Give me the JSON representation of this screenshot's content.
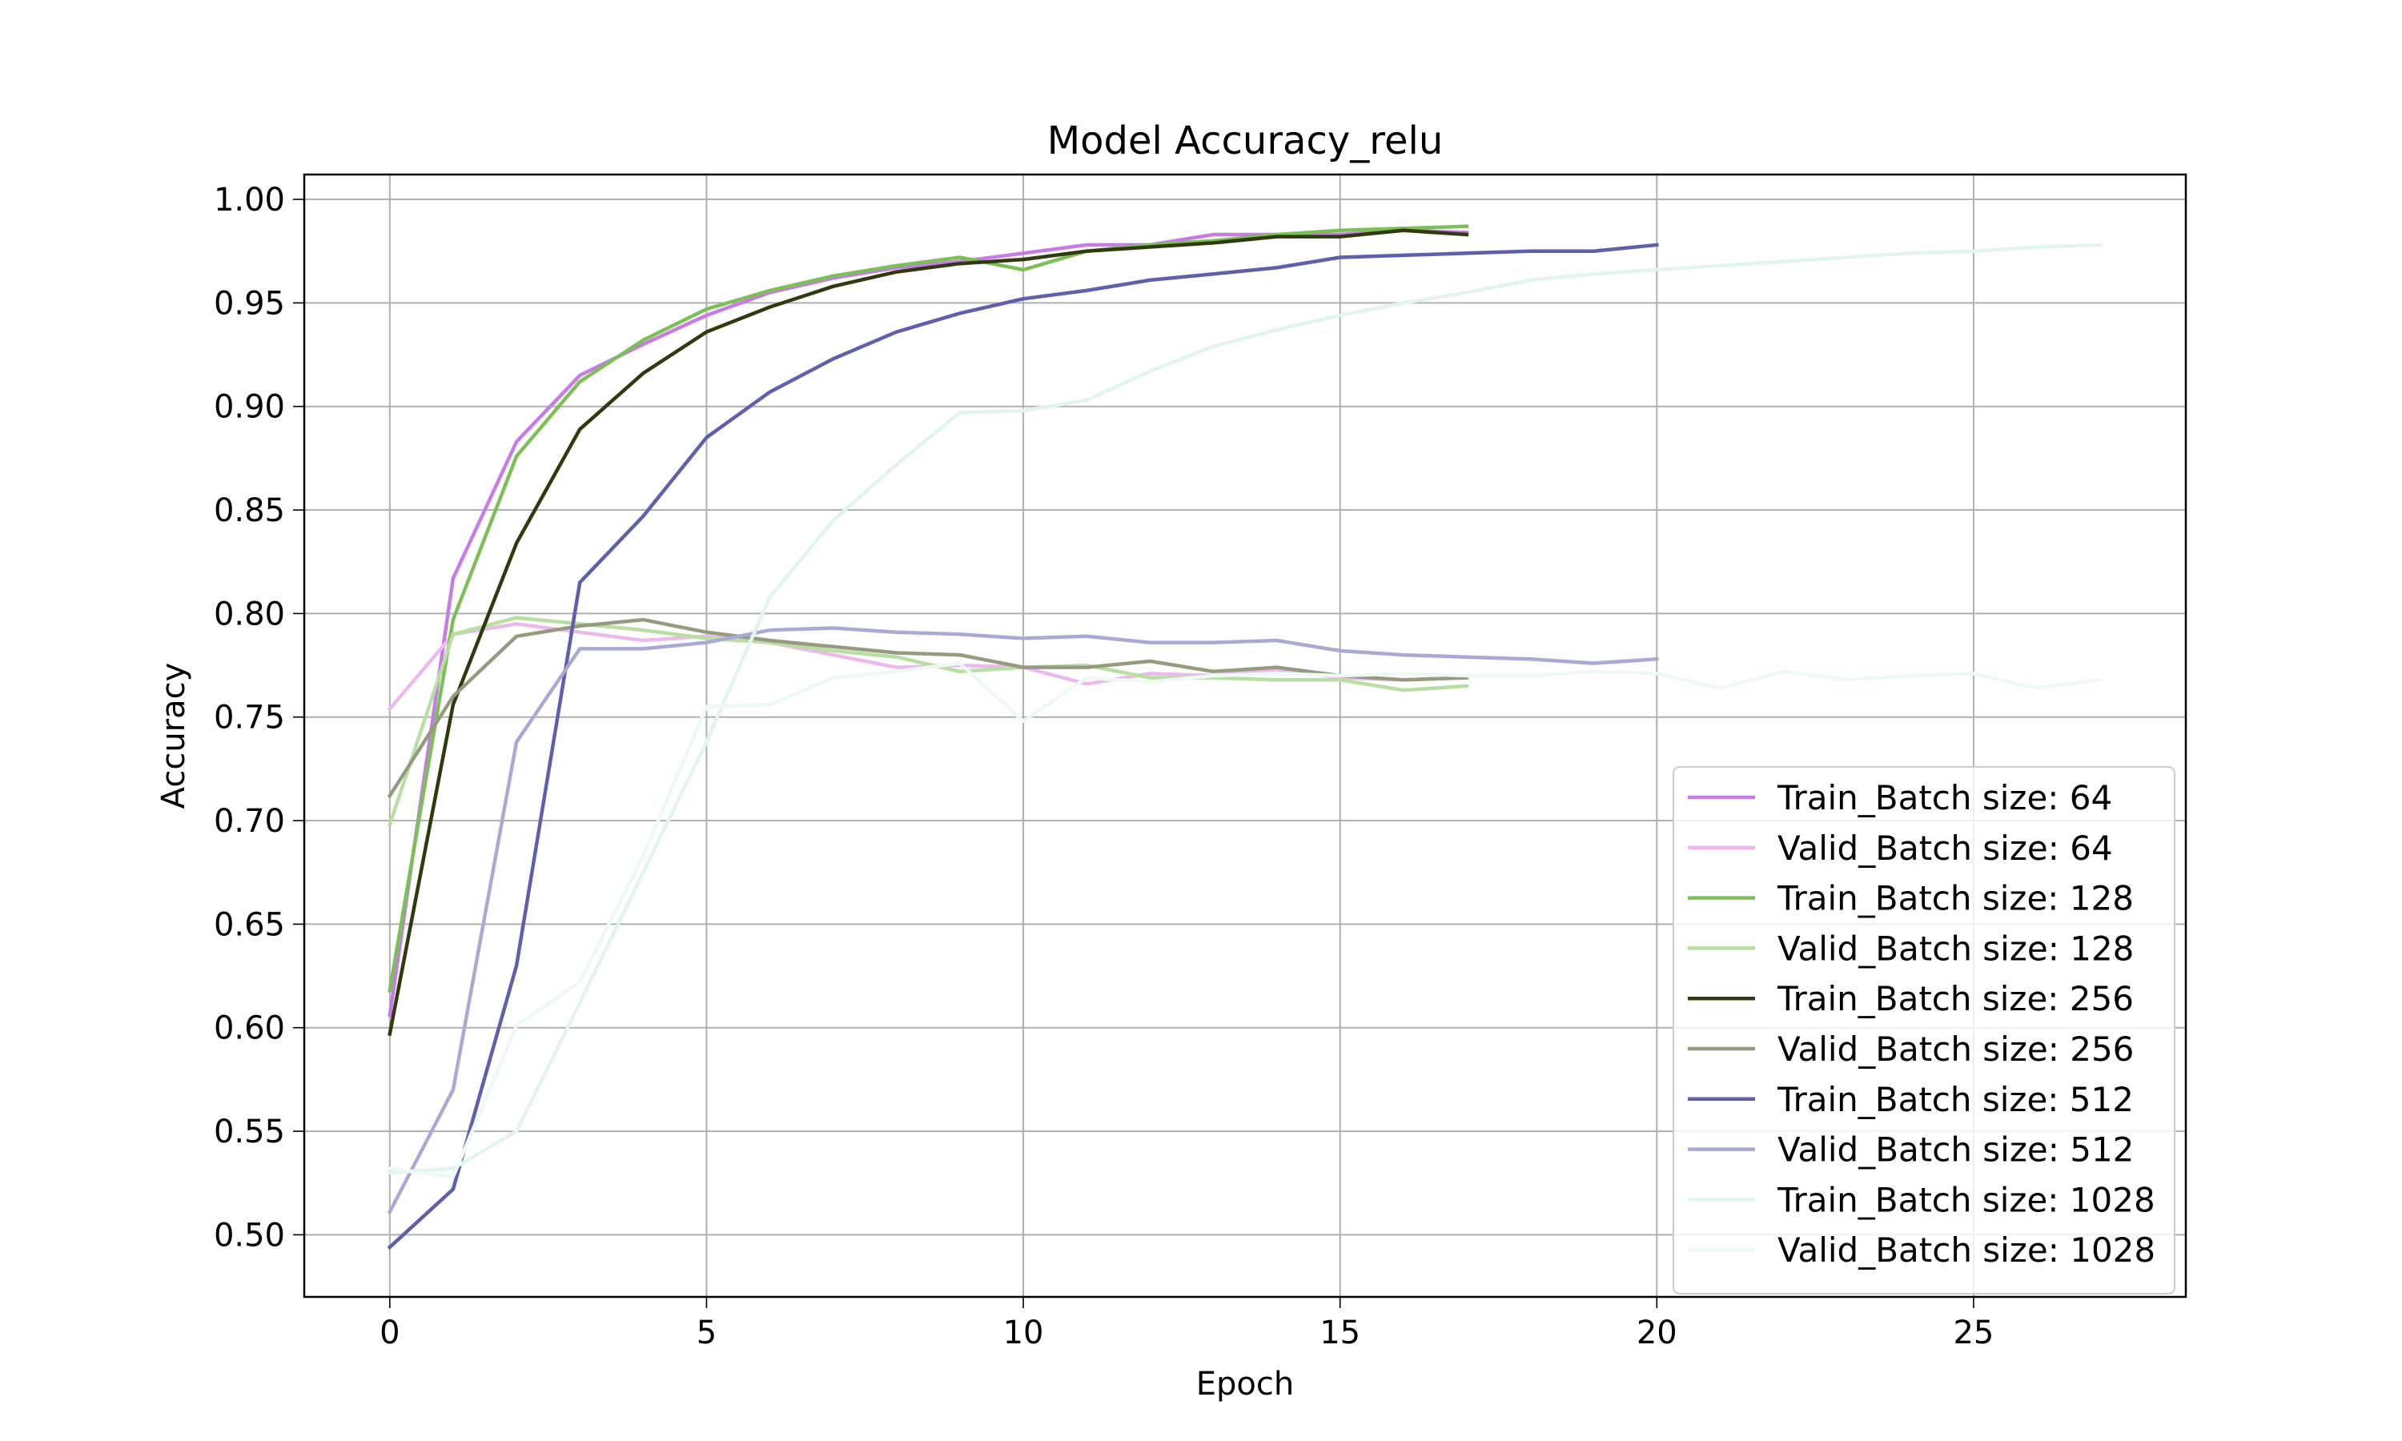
{
  "chart_data": {
    "type": "line",
    "title": "Model Accuracy_relu",
    "xlabel": "Epoch",
    "ylabel": "Accuracy",
    "xlim": [
      -1.35,
      28.35
    ],
    "ylim": [
      0.47,
      1.012
    ],
    "xticks": [
      0,
      5,
      10,
      15,
      20,
      25
    ],
    "yticks": [
      0.5,
      0.55,
      0.6,
      0.65,
      0.7,
      0.75,
      0.8,
      0.85,
      0.9,
      0.95,
      1.0
    ],
    "grid": true,
    "legend_position": "lower-right",
    "series": [
      {
        "name": "Train_Batch size: 64",
        "color": "#c77be6",
        "values": [
          0.606,
          0.817,
          0.883,
          0.915,
          0.93,
          0.944,
          0.955,
          0.962,
          0.967,
          0.97,
          0.974,
          0.978,
          0.978,
          0.983,
          0.983,
          0.983,
          0.985,
          0.984
        ]
      },
      {
        "name": "Valid_Batch size: 64",
        "color": "#ecb9ec",
        "values": [
          0.754,
          0.79,
          0.795,
          0.791,
          0.787,
          0.789,
          0.786,
          0.78,
          0.774,
          0.775,
          0.774,
          0.766,
          0.771,
          0.77,
          0.773,
          0.769,
          0.768,
          0.769
        ]
      },
      {
        "name": "Train_Batch size: 128",
        "color": "#7dbf57",
        "values": [
          0.618,
          0.797,
          0.876,
          0.912,
          0.932,
          0.947,
          0.956,
          0.963,
          0.968,
          0.972,
          0.966,
          0.975,
          0.978,
          0.98,
          0.983,
          0.985,
          0.986,
          0.987
        ]
      },
      {
        "name": "Valid_Batch size: 128",
        "color": "#b8dea2",
        "values": [
          0.698,
          0.79,
          0.798,
          0.795,
          0.792,
          0.788,
          0.786,
          0.782,
          0.779,
          0.772,
          0.774,
          0.775,
          0.769,
          0.769,
          0.768,
          0.768,
          0.763,
          0.765
        ]
      },
      {
        "name": "Train_Batch size: 256",
        "color": "#2f3a0e",
        "values": [
          0.597,
          0.756,
          0.834,
          0.889,
          0.916,
          0.936,
          0.948,
          0.958,
          0.965,
          0.969,
          0.971,
          0.975,
          0.977,
          0.979,
          0.982,
          0.982,
          0.985,
          0.983
        ]
      },
      {
        "name": "Valid_Batch size: 256",
        "color": "#969b80",
        "values": [
          0.712,
          0.76,
          0.789,
          0.794,
          0.797,
          0.791,
          0.787,
          0.784,
          0.781,
          0.78,
          0.774,
          0.774,
          0.777,
          0.772,
          0.774,
          0.77,
          0.768,
          0.769
        ]
      },
      {
        "name": "Train_Batch size: 512",
        "color": "#5f5fab",
        "values": [
          0.494,
          0.522,
          0.63,
          0.815,
          0.847,
          0.885,
          0.907,
          0.923,
          0.936,
          0.945,
          0.952,
          0.956,
          0.961,
          0.964,
          0.967,
          0.972,
          0.973,
          0.974,
          0.975,
          0.975,
          0.978
        ]
      },
      {
        "name": "Valid_Batch size: 512",
        "color": "#a9a9d4",
        "values": [
          0.511,
          0.57,
          0.738,
          0.783,
          0.783,
          0.786,
          0.792,
          0.793,
          0.791,
          0.79,
          0.788,
          0.789,
          0.786,
          0.786,
          0.787,
          0.782,
          0.78,
          0.779,
          0.778,
          0.776,
          0.778
        ]
      },
      {
        "name": "Train_Batch size: 1028",
        "color": "#e2f5ec",
        "values": [
          0.53,
          0.532,
          0.55,
          0.612,
          0.675,
          0.738,
          0.808,
          0.845,
          0.872,
          0.897,
          0.898,
          0.903,
          0.917,
          0.929,
          0.937,
          0.944,
          0.95,
          0.955,
          0.961,
          0.964,
          0.966,
          0.968,
          0.97,
          0.972,
          0.974,
          0.975,
          0.977,
          0.978
        ]
      },
      {
        "name": "Valid_Batch size: 1028",
        "color": "#eef8f4",
        "values": [
          0.532,
          0.528,
          0.601,
          0.622,
          0.683,
          0.755,
          0.756,
          0.769,
          0.772,
          0.776,
          0.748,
          0.769,
          0.767,
          0.77,
          0.771,
          0.77,
          0.771,
          0.77,
          0.77,
          0.772,
          0.771,
          0.764,
          0.772,
          0.768,
          0.77,
          0.771,
          0.764,
          0.768
        ]
      }
    ]
  }
}
